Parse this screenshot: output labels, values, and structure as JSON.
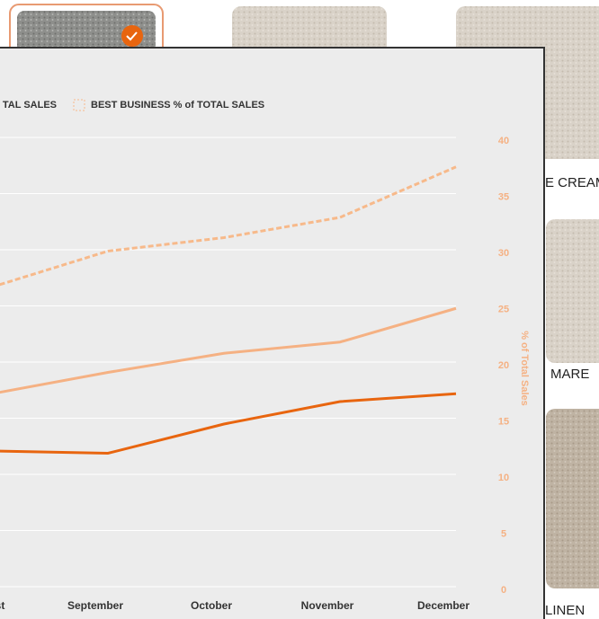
{
  "chart_data": {
    "type": "line",
    "categories": [
      "st",
      "September",
      "October",
      "November",
      "December"
    ],
    "series": [
      {
        "color": "#e8650f",
        "dash": false,
        "values": [
          12.4,
          12.2,
          14.8,
          16.8,
          17.5
        ]
      },
      {
        "name": "TAL SALES",
        "color": "#f5b183",
        "dash": false,
        "values": [
          17.5,
          19.4,
          21.1,
          22.1,
          25.1
        ]
      },
      {
        "name": "BEST BUSINESS % of TOTAL SALES",
        "color": "#f7b98a",
        "dash": true,
        "values": [
          27,
          30.2,
          31.4,
          33.2,
          37.7
        ]
      }
    ],
    "ylabel": "% of Total Sales",
    "ylim": [
      0,
      40
    ],
    "yticks": [
      0,
      5,
      10,
      15,
      20,
      25,
      30,
      35,
      40
    ],
    "grid": true
  },
  "swatch_labels": [
    "E CREAM",
    "MARE",
    "LINEN"
  ]
}
